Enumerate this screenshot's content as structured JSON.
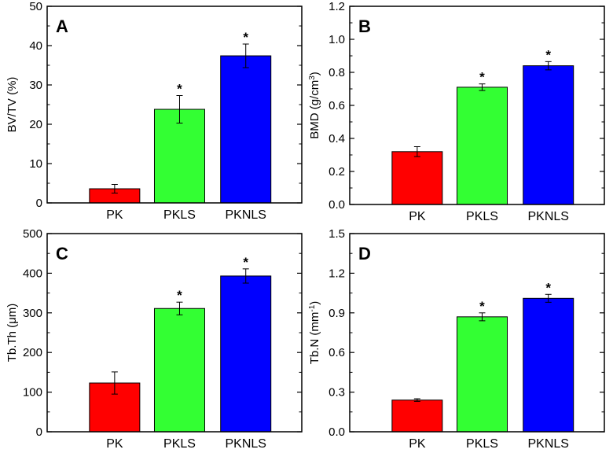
{
  "chart_data": [
    {
      "type": "bar",
      "panel_label": "A",
      "categories": [
        "PK",
        "PKLS",
        "PKNLS"
      ],
      "values": [
        3.6,
        23.8,
        37.4
      ],
      "errors": [
        1.1,
        3.5,
        3.0
      ],
      "significance": [
        "",
        "*",
        "*"
      ],
      "colors": [
        "#ff0000",
        "#33ff33",
        "#0000ff"
      ],
      "ylabel": "BV/TV (%)",
      "ylabel_sup": "",
      "ylabel_tail": "",
      "ylim": [
        0,
        50
      ],
      "yticks": [
        0,
        10,
        20,
        30,
        40,
        50
      ],
      "ytick_labels": [
        "0",
        "10",
        "20",
        "30",
        "40",
        "50"
      ]
    },
    {
      "type": "bar",
      "panel_label": "B",
      "categories": [
        "PK",
        "PKLS",
        "PKNLS"
      ],
      "values": [
        0.32,
        0.71,
        0.84
      ],
      "errors": [
        0.03,
        0.02,
        0.025
      ],
      "significance": [
        "",
        "*",
        "*"
      ],
      "colors": [
        "#ff0000",
        "#33ff33",
        "#0000ff"
      ],
      "ylabel": "BMD (g/cm",
      "ylabel_sup": "3",
      "ylabel_tail": ")",
      "ylim": [
        0,
        1.2
      ],
      "yticks": [
        0,
        0.2,
        0.4,
        0.6,
        0.8,
        1.0,
        1.2
      ],
      "ytick_labels": [
        "0.0",
        "0.2",
        "0.4",
        "0.6",
        "0.8",
        "1.0",
        "1.2"
      ]
    },
    {
      "type": "bar",
      "panel_label": "C",
      "categories": [
        "PK",
        "PKLS",
        "PKNLS"
      ],
      "values": [
        123,
        311,
        393
      ],
      "errors": [
        28,
        16,
        18
      ],
      "significance": [
        "",
        "*",
        "*"
      ],
      "colors": [
        "#ff0000",
        "#33ff33",
        "#0000ff"
      ],
      "ylabel": "Tb.Th (μm)",
      "ylabel_sup": "",
      "ylabel_tail": "",
      "ylim": [
        0,
        500
      ],
      "yticks": [
        0,
        100,
        200,
        300,
        400,
        500
      ],
      "ytick_labels": [
        "0",
        "100",
        "200",
        "300",
        "400",
        "500"
      ]
    },
    {
      "type": "bar",
      "panel_label": "D",
      "categories": [
        "PK",
        "PKLS",
        "PKNLS"
      ],
      "values": [
        0.24,
        0.87,
        1.01
      ],
      "errors": [
        0.01,
        0.03,
        0.03
      ],
      "significance": [
        "",
        "*",
        "*"
      ],
      "colors": [
        "#ff0000",
        "#33ff33",
        "#0000ff"
      ],
      "ylabel": "Tb.N (mm",
      "ylabel_sup": "-1",
      "ylabel_tail": ")",
      "ylim": [
        0,
        1.5
      ],
      "yticks": [
        0,
        0.3,
        0.6,
        0.9,
        1.2,
        1.5
      ],
      "ytick_labels": [
        "0.0",
        "0.3",
        "0.6",
        "0.9",
        "1.2",
        "1.5"
      ]
    }
  ]
}
